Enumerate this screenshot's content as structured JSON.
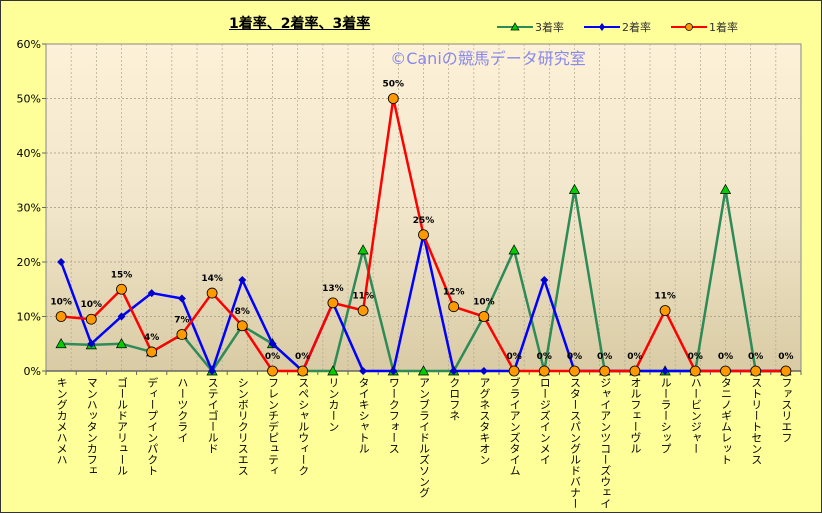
{
  "chart_data": {
    "type": "line",
    "title": "1着率、2着率、3着率",
    "watermark": "©Caniの競馬データ研究室",
    "xlabel": "",
    "ylabel": "",
    "ylim": [
      0,
      60
    ],
    "yticks": [
      "0%",
      "10%",
      "20%",
      "30%",
      "40%",
      "50%",
      "60%"
    ],
    "grid": true,
    "legend_position": "top-right",
    "categories": [
      "キングカメハメハ",
      "マンハッタンカフェ",
      "ゴールドアリュール",
      "ディープインパクト",
      "ハーツクライ",
      "ステイゴールド",
      "シンボリクリスエス",
      "フレンチデピュティ",
      "スペシャルウィーク",
      "リンカーン",
      "タイキシャトル",
      "ワークフォース",
      "アンブライドルズソング",
      "クロフネ",
      "アグネスタキオン",
      "ブライアンズタイム",
      "ロージズインメイ",
      "スタースパングルドバナー",
      "ジャイアンツコーズウェイ",
      "オルフェーヴル",
      "ルーラーシップ",
      "ハービンジャー",
      "タニノギムレット",
      "ストリートセンス",
      "ファスリエフ"
    ],
    "series": [
      {
        "name": "3着率",
        "color": "#2e8b57",
        "marker": "triangle",
        "marker_color": "#00cc00",
        "values": [
          5,
          4.8,
          5,
          3.5,
          6.7,
          0,
          8.3,
          5,
          0,
          0,
          22.2,
          0,
          0,
          0,
          10,
          22.2,
          0,
          33.3,
          0,
          0,
          0,
          0,
          33.3,
          0,
          0
        ]
      },
      {
        "name": "2着率",
        "color": "#0000ff",
        "marker": "diamond",
        "marker_color": "#0000cc",
        "values": [
          20,
          5,
          10,
          14.3,
          13.3,
          0,
          16.7,
          5,
          0,
          12.5,
          0,
          0,
          25,
          0,
          0,
          0,
          16.7,
          0,
          0,
          0,
          0,
          0,
          0,
          0,
          0
        ]
      },
      {
        "name": "1着率",
        "color": "#ff0000",
        "marker": "circle",
        "marker_color": "#ff9900",
        "values": [
          10,
          9.5,
          15,
          3.5,
          6.7,
          14.3,
          8.3,
          0,
          0,
          12.5,
          11.1,
          50,
          25,
          11.8,
          10,
          0,
          0,
          0,
          0,
          0,
          11.1,
          0,
          0,
          0,
          0
        ],
        "labels": [
          "10%",
          "10%",
          "15%",
          "4%",
          "7%",
          "14%",
          "8%",
          "0%",
          "0%",
          "13%",
          "11%",
          "50%",
          "25%",
          "12%",
          "10%",
          "0%",
          "0%",
          "0%",
          "0%",
          "0%",
          "11%",
          "0%",
          "0%",
          "0%",
          "0%"
        ]
      }
    ]
  }
}
